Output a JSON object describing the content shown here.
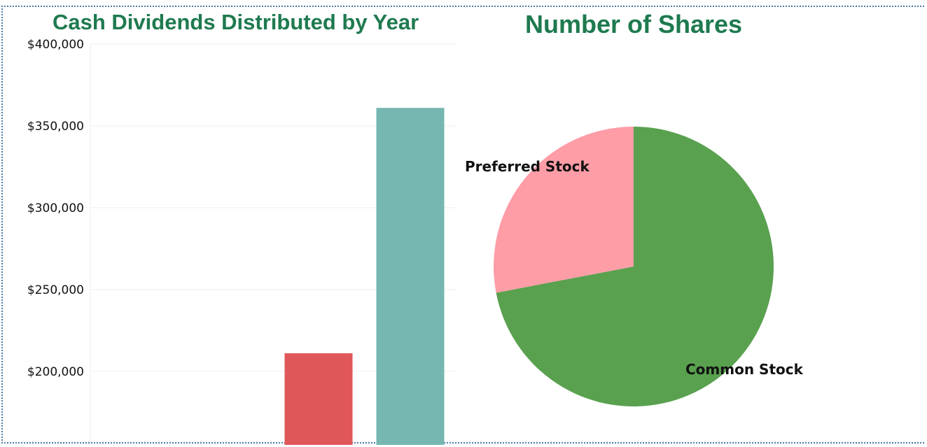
{
  "chart_data": [
    {
      "type": "bar",
      "title": "Cash Dividends Distributed by Year",
      "xlabel": "",
      "ylabel": "",
      "ylim": [
        155000,
        400000
      ],
      "yticks": [
        {
          "value": 400000,
          "label": "$400,000"
        },
        {
          "value": 350000,
          "label": "$350,000"
        },
        {
          "value": 300000,
          "label": "$300,000"
        },
        {
          "value": 250000,
          "label": "$250,000"
        },
        {
          "value": 200000,
          "label": "$200,000"
        }
      ],
      "categories": [
        "",
        ""
      ],
      "values": [
        211000,
        361000
      ],
      "colors": [
        "#e05759",
        "#76b7b2"
      ],
      "grid": true
    },
    {
      "type": "pie",
      "title": "Number of Shares",
      "slices": [
        {
          "label": "Common Stock",
          "value": 72,
          "color": "#59a14f"
        },
        {
          "label": "Preferred Stock",
          "value": 28,
          "color": "#ff9da7"
        }
      ]
    }
  ]
}
